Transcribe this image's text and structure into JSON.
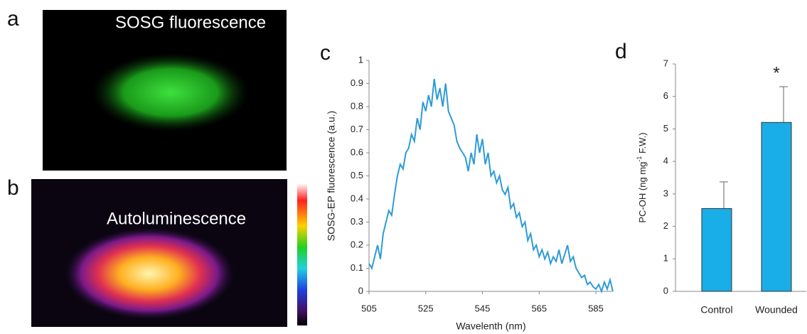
{
  "panels": [
    {
      "label": "a",
      "caption": "SOSG fluorescence"
    },
    {
      "label": "b",
      "caption": "Autoluminescence"
    },
    {
      "label": "c"
    },
    {
      "label": "d"
    }
  ],
  "chart_data": [
    {
      "type": "line",
      "xlabel": "Wavelenth  (nm)",
      "ylabel": "SOSG-EP fluorescence  (a.u.)",
      "xlim": [
        505,
        591
      ],
      "xticks": [
        505,
        525,
        545,
        565,
        585
      ],
      "ylim": [
        0,
        1
      ],
      "yticks": [
        0,
        0.1,
        0.2,
        0.3,
        0.4,
        0.5,
        0.6,
        0.7,
        0.8,
        0.9,
        1
      ],
      "x": [
        505,
        506,
        507,
        508,
        509,
        510,
        511,
        512,
        513,
        514,
        515,
        516,
        517,
        518,
        519,
        520,
        521,
        522,
        523,
        524,
        525,
        526,
        527,
        528,
        529,
        530,
        531,
        532,
        533,
        534,
        535,
        536,
        537,
        538,
        539,
        540,
        541,
        542,
        543,
        544,
        545,
        546,
        547,
        548,
        549,
        550,
        551,
        552,
        553,
        554,
        555,
        556,
        557,
        558,
        559,
        560,
        561,
        562,
        563,
        564,
        565,
        566,
        567,
        568,
        569,
        570,
        571,
        572,
        573,
        574,
        575,
        576,
        577,
        578,
        579,
        580,
        581,
        582,
        583,
        584,
        585,
        586,
        587,
        588,
        589,
        590,
        591
      ],
      "series": [
        {
          "color": "#2e9bd6",
          "values": [
            0.12,
            0.1,
            0.15,
            0.2,
            0.14,
            0.25,
            0.3,
            0.35,
            0.33,
            0.42,
            0.5,
            0.55,
            0.53,
            0.6,
            0.62,
            0.68,
            0.65,
            0.75,
            0.7,
            0.82,
            0.78,
            0.85,
            0.8,
            0.92,
            0.83,
            0.88,
            0.8,
            0.9,
            0.78,
            0.75,
            0.72,
            0.65,
            0.62,
            0.6,
            0.58,
            0.52,
            0.6,
            0.55,
            0.68,
            0.6,
            0.66,
            0.55,
            0.6,
            0.5,
            0.52,
            0.47,
            0.5,
            0.44,
            0.42,
            0.45,
            0.36,
            0.38,
            0.32,
            0.34,
            0.28,
            0.3,
            0.22,
            0.25,
            0.18,
            0.2,
            0.15,
            0.18,
            0.14,
            0.17,
            0.12,
            0.15,
            0.13,
            0.18,
            0.12,
            0.16,
            0.2,
            0.13,
            0.15,
            0.1,
            0.08,
            0.06,
            0.07,
            0.03,
            0.04,
            0.02,
            0.01,
            0.03,
            0,
            0.04,
            0.01,
            0.05,
            0
          ]
        }
      ]
    },
    {
      "type": "bar",
      "ylabel": {
        "text": "PC-OH  (ng mg",
        "superscript": "-1",
        "suffix": " F.W.)"
      },
      "categories": [
        "Control",
        "Wounded"
      ],
      "values": [
        2.55,
        5.2
      ],
      "errors": [
        0.82,
        1.1
      ],
      "color": "#1aaee8",
      "ylim": [
        0,
        7
      ],
      "yticks": [
        0,
        1,
        2,
        3,
        4,
        5,
        6,
        7
      ],
      "annotations": [
        {
          "category": 1,
          "text": "*"
        }
      ]
    }
  ]
}
